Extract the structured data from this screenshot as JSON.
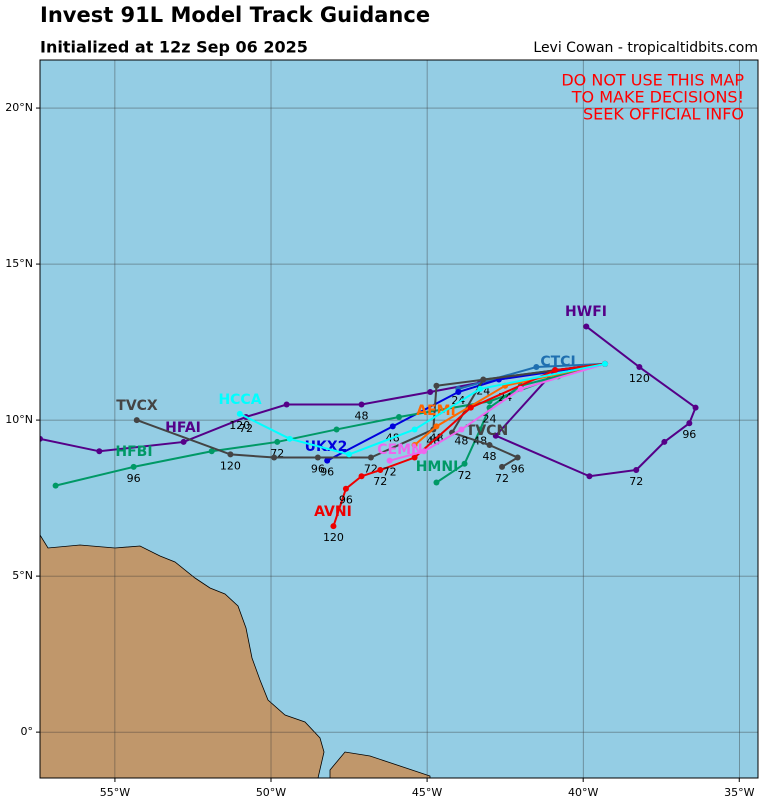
{
  "chart_data": {
    "type": "track-map",
    "title": "Invest 91L Model Track Guidance",
    "subtitle": "Initialized at 12z Sep 06 2025",
    "credit": "Levi Cowan - tropicaltidbits.com",
    "warning": [
      "DO NOT USE THIS MAP",
      "TO MAKE DECISIONS!",
      "SEEK OFFICIAL INFO"
    ],
    "xlim": [
      -57.4,
      -34.4
    ],
    "ylim": [
      -1.47,
      21.54
    ],
    "xticks": [
      {
        "value": -55,
        "label": "55°W"
      },
      {
        "value": -50,
        "label": "50°W"
      },
      {
        "value": -45,
        "label": "45°W"
      },
      {
        "value": -40,
        "label": "40°W"
      },
      {
        "value": -35,
        "label": "35°W"
      }
    ],
    "yticks": [
      {
        "value": 0,
        "label": "0°"
      },
      {
        "value": 5,
        "label": "5°N"
      },
      {
        "value": 10,
        "label": "10°N"
      },
      {
        "value": 15,
        "label": "15°N"
      },
      {
        "value": 20,
        "label": "20°N"
      }
    ],
    "grid": true,
    "series": [
      {
        "name": "HWFI",
        "color": "#550088",
        "x": [
          -39.3,
          -40.9,
          -42.8,
          -39.8,
          -38.3,
          -37.4,
          -36.6,
          -36.4,
          -38.2,
          -39.9
        ],
        "values": [
          11.8,
          11.6,
          9.5,
          8.2,
          8.4,
          9.3,
          9.9,
          10.4,
          11.7,
          13.0
        ],
        "labels": [
          null,
          null,
          null,
          null,
          "72",
          null,
          "96",
          null,
          "120",
          null
        ]
      },
      {
        "name": "HFAI",
        "color": "#550088",
        "x": [
          -39.3,
          -40.9,
          -43.3,
          -44.9,
          -47.1,
          -49.5,
          -50.8,
          -52.8,
          -55.5,
          -57.4
        ],
        "values": [
          11.8,
          11.6,
          11.2,
          10.9,
          10.5,
          10.5,
          10.1,
          9.3,
          9.0,
          9.4
        ],
        "labels": [
          null,
          null,
          null,
          null,
          "48",
          null,
          "72",
          null,
          null,
          null
        ]
      },
      {
        "name": "CTCI",
        "color": "#1f6fb0",
        "x": [
          -39.3,
          -41.5,
          -44.0
        ],
        "values": [
          11.8,
          11.7,
          11.0
        ],
        "labels": [
          null,
          null,
          "24"
        ]
      },
      {
        "name": "UKX2",
        "color": "#0000dd",
        "x": [
          -39.3,
          -42.7,
          -44.0,
          -46.1,
          -48.2
        ],
        "values": [
          11.8,
          11.3,
          10.9,
          9.8,
          8.7
        ],
        "labels": [
          null,
          null,
          null,
          "48",
          "96"
        ]
      },
      {
        "name": "HMNI",
        "color": "#009966",
        "x": [
          -39.3,
          -42.0,
          -43.0,
          -43.3,
          -43.8,
          -44.7
        ],
        "values": [
          11.8,
          11.1,
          10.4,
          9.7,
          8.6,
          8.0
        ],
        "labels": [
          null,
          null,
          "24",
          "48",
          "72",
          null
        ]
      },
      {
        "name": "HFBI",
        "color": "#009966",
        "x": [
          -39.3,
          -40.8,
          -43.0,
          -45.9,
          -47.9,
          -49.8,
          -51.9,
          -54.4,
          -56.9
        ],
        "values": [
          11.8,
          11.4,
          10.6,
          10.1,
          9.7,
          9.3,
          9.0,
          8.5,
          7.9
        ],
        "labels": [
          null,
          null,
          null,
          null,
          null,
          "72",
          null,
          "96",
          null
        ]
      },
      {
        "name": "TVCX",
        "color": "#444444",
        "x": [
          -39.3,
          -44.7,
          -44.8,
          -46.8,
          -48.5,
          -49.9,
          -51.3,
          -54.3
        ],
        "values": [
          11.8,
          11.1,
          9.7,
          8.8,
          8.8,
          8.8,
          8.9,
          10.0
        ],
        "labels": [
          null,
          null,
          "48",
          "72",
          "96",
          null,
          "120",
          null
        ]
      },
      {
        "name": "TVCN",
        "color": "#444444",
        "x": [
          -39.3,
          -43.2,
          -44.2,
          -43.0,
          -42.1,
          -42.6
        ],
        "values": [
          11.8,
          11.3,
          9.6,
          9.2,
          8.8,
          8.5
        ],
        "labels": [
          null,
          "24",
          null,
          "48",
          "96",
          "72"
        ]
      },
      {
        "name": "AEMI",
        "color": "#ff6600",
        "x": [
          -39.3,
          -42.5,
          -44.7,
          -45.4
        ],
        "values": [
          11.8,
          11.1,
          9.8,
          9.2
        ],
        "labels": [
          null,
          "24",
          "48",
          null
        ]
      },
      {
        "name": "AVNI",
        "color": "#ee0000",
        "x": [
          -39.3,
          -40.9,
          -43.6,
          -45.4,
          -46.5,
          -47.1,
          -47.6,
          -48.0
        ],
        "values": [
          11.8,
          11.6,
          10.4,
          8.8,
          8.4,
          8.2,
          7.8,
          6.6
        ],
        "labels": [
          null,
          null,
          null,
          null,
          "72",
          null,
          "96",
          "120"
        ]
      },
      {
        "name": "CEMN",
        "color": "#ee66ee",
        "x": [
          -39.3,
          -42.0,
          -43.9,
          -45.1,
          -46.2
        ],
        "values": [
          11.8,
          11.0,
          9.7,
          9.0,
          8.7
        ],
        "labels": [
          null,
          null,
          "48",
          null,
          "72"
        ]
      },
      {
        "name": "HCCA",
        "color": "#00ffff",
        "x": [
          -39.3,
          -43.3,
          -45.4,
          -47.5,
          -49.4,
          -51.0
        ],
        "values": [
          11.8,
          11.0,
          9.7,
          8.9,
          9.4,
          10.2
        ],
        "labels": [
          null,
          null,
          null,
          null,
          null,
          "120"
        ]
      }
    ]
  }
}
